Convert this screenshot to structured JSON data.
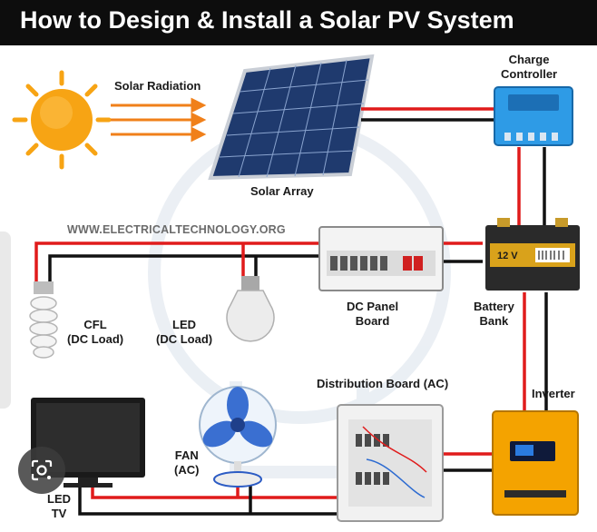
{
  "title": "How to Design & Install a Solar PV System",
  "website": "WWW.ELECTRICALTECHNOLOGY.ORG",
  "labels": {
    "solar_radiation": "Solar Radiation",
    "solar_array": "Solar Array",
    "charge_controller": [
      "Charge",
      "Controller"
    ],
    "battery_bank": [
      "Battery",
      "Bank"
    ],
    "battery_voltage": "12 V",
    "dc_panel_board": [
      "DC Panel",
      "Board"
    ],
    "cfl": [
      "CFL",
      "(DC Load)"
    ],
    "led": [
      "LED",
      "(DC Load)"
    ],
    "distribution_board": "Distribution Board (AC)",
    "inverter": "Inverter",
    "fan": [
      "FAN",
      "(AC)"
    ],
    "led_tv": [
      "LED",
      "TV"
    ]
  },
  "colors": {
    "positive_wire": "#e01b1b",
    "negative_wire": "#111111",
    "sun": "#f7a414",
    "charge_controller": "#2e9be6",
    "inverter": "#f4a300",
    "title_bar": "#0d0d0d"
  },
  "icons": [
    "sun-icon",
    "solar-panel-icon",
    "charge-controller-icon",
    "battery-icon",
    "dc-panel-icon",
    "cfl-bulb-icon",
    "led-bulb-icon",
    "distribution-board-icon",
    "inverter-icon",
    "fan-icon",
    "tv-icon",
    "lens-icon"
  ]
}
